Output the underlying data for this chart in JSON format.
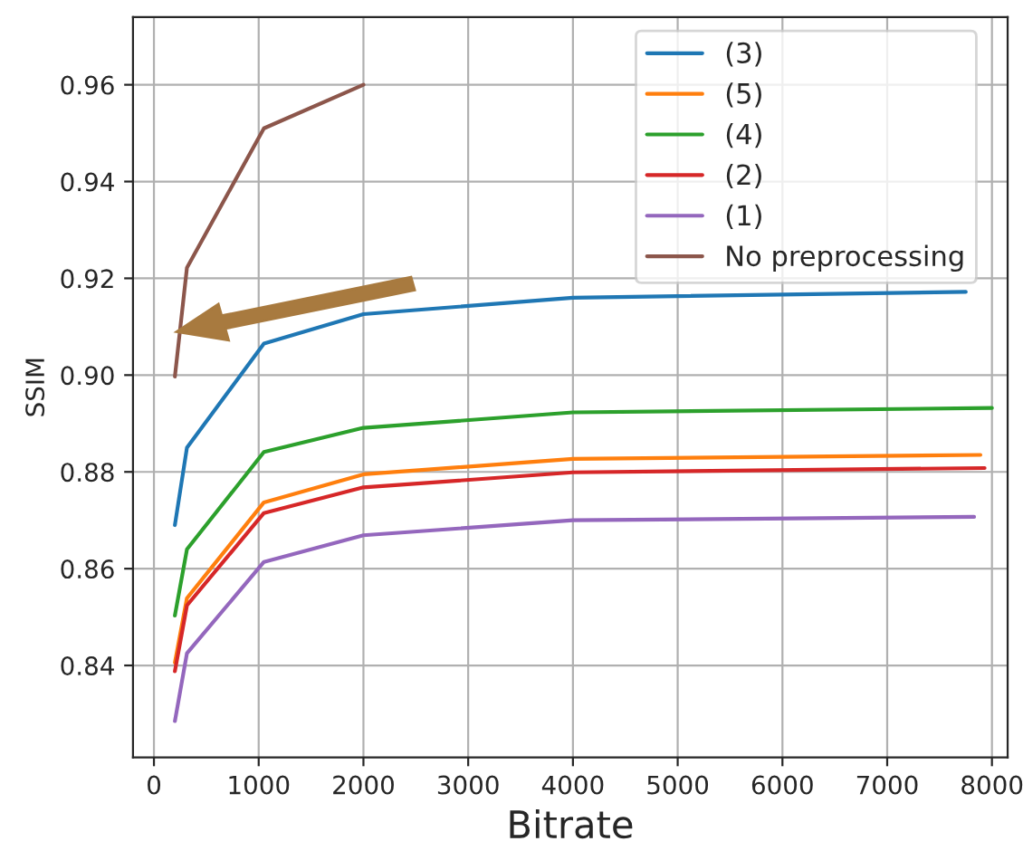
{
  "chart_data": {
    "type": "line",
    "xlabel": "Bitrate",
    "ylabel": "SSIM",
    "xlim": [
      -200,
      8150
    ],
    "ylim": [
      0.821,
      0.974
    ],
    "xticks": [
      0,
      1000,
      2000,
      3000,
      4000,
      5000,
      6000,
      7000,
      8000
    ],
    "yticks": [
      {
        "value": 0.84,
        "label": "0.84"
      },
      {
        "value": 0.86,
        "label": "0.86"
      },
      {
        "value": 0.88,
        "label": "0.88"
      },
      {
        "value": 0.9,
        "label": "0.90"
      },
      {
        "value": 0.92,
        "label": "0.92"
      },
      {
        "value": 0.94,
        "label": "0.94"
      },
      {
        "value": 0.96,
        "label": "0.96"
      }
    ],
    "grid": true,
    "legend": "top right",
    "marker": "none",
    "line_style": "solid",
    "series": [
      {
        "name": "(3)",
        "color": "#1f77b4",
        "x": [
          200,
          315,
          1050,
          2000,
          4000,
          7750
        ],
        "values": [
          0.869,
          0.885,
          0.9065,
          0.9126,
          0.916,
          0.9172
        ]
      },
      {
        "name": "(5)",
        "color": "#ff7f0e",
        "x": [
          200,
          315,
          1050,
          2000,
          4000,
          7890
        ],
        "values": [
          0.8406,
          0.8539,
          0.8737,
          0.8795,
          0.8827,
          0.8835
        ]
      },
      {
        "name": "(4)",
        "color": "#2ca02c",
        "x": [
          200,
          315,
          1050,
          2000,
          4000,
          8000
        ],
        "values": [
          0.8503,
          0.864,
          0.8841,
          0.8891,
          0.8923,
          0.8932
        ]
      },
      {
        "name": "(2)",
        "color": "#d62728",
        "x": [
          200,
          315,
          1050,
          2000,
          4000,
          7930
        ],
        "values": [
          0.8388,
          0.8524,
          0.8715,
          0.8768,
          0.8799,
          0.8808
        ]
      },
      {
        "name": "(1)",
        "color": "#9467bd",
        "x": [
          200,
          315,
          1050,
          2000,
          4000,
          7830
        ],
        "values": [
          0.8285,
          0.8425,
          0.8614,
          0.8669,
          0.87,
          0.8707
        ]
      },
      {
        "name": "No preprocessing",
        "color": "#8c564b",
        "x": [
          200,
          315,
          1050,
          2000
        ],
        "values": [
          0.8997,
          0.9222,
          0.951,
          0.96
        ]
      }
    ]
  }
}
